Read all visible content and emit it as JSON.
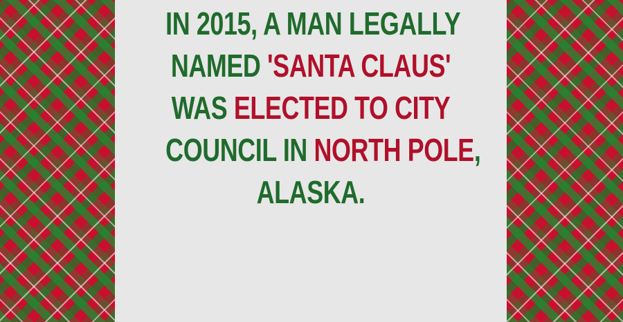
{
  "fact": {
    "line1": "IN 2015, A MAN LEGALLY",
    "line2_a": "NAMED ",
    "line2_b": "'SANTA CLAUS'",
    "line3_a": "WAS ",
    "line3_b": "ELECTED TO CITY",
    "line4_a": "COUNCIL IN ",
    "line4_b": "NORTH POLE",
    "line4_c": ",",
    "line5": "ALASKA."
  },
  "colors": {
    "text_green": "#1f6b2c",
    "text_red": "#b0102a",
    "panel_bg": "#e7e7e7",
    "plaid_red": "#c8102e",
    "plaid_green": "#1e8c32"
  }
}
